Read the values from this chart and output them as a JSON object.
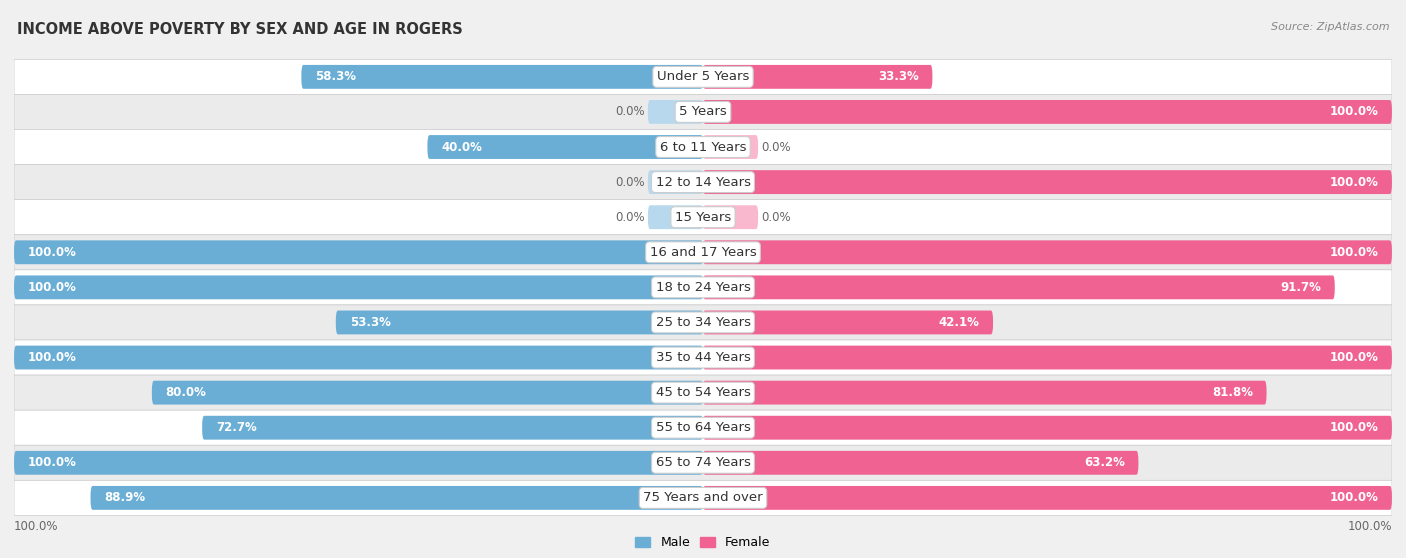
{
  "title": "INCOME ABOVE POVERTY BY SEX AND AGE IN ROGERS",
  "source": "Source: ZipAtlas.com",
  "categories": [
    "Under 5 Years",
    "5 Years",
    "6 to 11 Years",
    "12 to 14 Years",
    "15 Years",
    "16 and 17 Years",
    "18 to 24 Years",
    "25 to 34 Years",
    "35 to 44 Years",
    "45 to 54 Years",
    "55 to 64 Years",
    "65 to 74 Years",
    "75 Years and over"
  ],
  "male": [
    58.3,
    0.0,
    40.0,
    0.0,
    0.0,
    100.0,
    100.0,
    53.3,
    100.0,
    80.0,
    72.7,
    100.0,
    88.9
  ],
  "female": [
    33.3,
    100.0,
    0.0,
    100.0,
    0.0,
    100.0,
    91.7,
    42.1,
    100.0,
    81.8,
    100.0,
    63.2,
    100.0
  ],
  "male_color": "#6aaed6",
  "male_color_zero": "#b8d8ed",
  "female_color": "#f06292",
  "female_color_zero": "#f9b8ce",
  "bg_color": "#f0f0f0",
  "row_bg_white": "#ffffff",
  "row_bg_light": "#ebebeb",
  "label_fontsize": 9.5,
  "title_fontsize": 10.5,
  "value_fontsize": 8.5,
  "bar_height": 0.68,
  "xlim": 100
}
